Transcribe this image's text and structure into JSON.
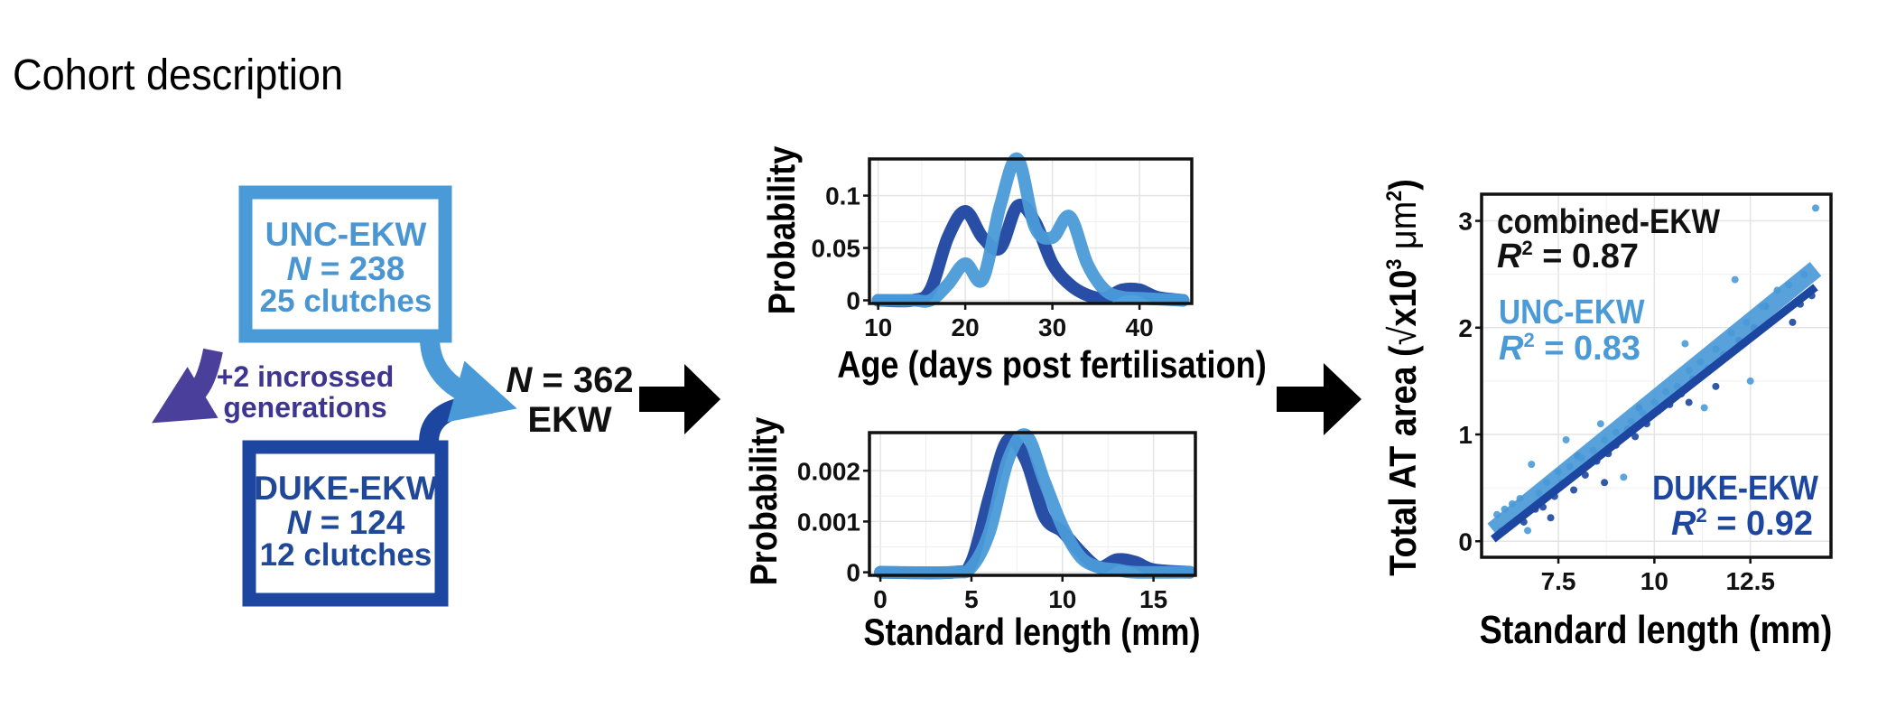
{
  "page_title": "Cohort description",
  "colors": {
    "unc": "#4a9ad8",
    "unc_text": "#4a96d2",
    "duke": "#1c46a0",
    "duke_text": "#1f4898",
    "cross": "#4b3f9c",
    "arrow": "#000000"
  },
  "cohort": {
    "unc": {
      "name": "UNC-EKW",
      "n_label": "N",
      "n_value": "= 238",
      "clutches": "25 clutches"
    },
    "duke": {
      "name": "DUKE-EKW",
      "n_label": "N",
      "n_value": "= 124",
      "clutches": "12 clutches"
    },
    "intercross": {
      "line1": "+2 incrossed",
      "line2": "generations"
    },
    "combined": {
      "n_label": "N",
      "n_value": "= 362",
      "name": "EKW"
    }
  },
  "chart_data": [
    {
      "type": "line",
      "id": "age-density",
      "title": "",
      "xlabel": "Age (days post fertilisation)",
      "ylabel": "Probability",
      "xlim": [
        9,
        46
      ],
      "ylim": [
        -0.003,
        0.135
      ],
      "xticks": [
        "10",
        "20",
        "30",
        "40"
      ],
      "xtick_values": [
        10,
        20,
        30,
        40
      ],
      "yticks": [
        "0",
        "0.05",
        "0.1"
      ],
      "ytick_values": [
        0,
        0.05,
        0.1
      ],
      "series": [
        {
          "name": "DUKE-EKW",
          "x": [
            10,
            14,
            16,
            18,
            20,
            22,
            24,
            26,
            28,
            30,
            32,
            34,
            36,
            38,
            40,
            42,
            45
          ],
          "y": [
            0,
            0,
            0.01,
            0.06,
            0.085,
            0.06,
            0.05,
            0.09,
            0.075,
            0.035,
            0.015,
            0.005,
            0.002,
            0.01,
            0.01,
            0.003,
            0
          ]
        },
        {
          "name": "UNC-EKW",
          "x": [
            10,
            14,
            16,
            18,
            20,
            22,
            24,
            26,
            28,
            30,
            32,
            34,
            36,
            38,
            40,
            45
          ],
          "y": [
            0,
            0,
            0,
            0.015,
            0.035,
            0.02,
            0.09,
            0.135,
            0.07,
            0.06,
            0.08,
            0.035,
            0.01,
            0.003,
            0.002,
            0
          ]
        }
      ]
    },
    {
      "type": "line",
      "id": "length-density",
      "title": "",
      "xlabel": "Standard length (mm)",
      "ylabel": "Probability",
      "xlim": [
        -0.6,
        17.3
      ],
      "ylim": [
        -6e-05,
        0.00275
      ],
      "xticks": [
        "0",
        "5",
        "10",
        "15"
      ],
      "xtick_values": [
        0,
        5,
        10,
        15
      ],
      "yticks": [
        "0",
        "0.001",
        "0.002"
      ],
      "ytick_values": [
        0,
        0.001,
        0.002
      ],
      "series": [
        {
          "name": "DUKE-EKW",
          "x": [
            0,
            4,
            5,
            6,
            7,
            8,
            9,
            10,
            11,
            12,
            13,
            14,
            15,
            17
          ],
          "y": [
            0,
            0,
            0.0002,
            0.0015,
            0.0026,
            0.0022,
            0.0011,
            0.0008,
            0.0004,
            0.0001,
            0.00025,
            0.0002,
            5e-05,
            0
          ]
        },
        {
          "name": "UNC-EKW",
          "x": [
            0,
            4,
            5,
            6,
            7,
            8,
            9,
            10,
            11,
            12,
            13,
            14,
            17
          ],
          "y": [
            0,
            0,
            0.0001,
            0.0008,
            0.0022,
            0.0027,
            0.0018,
            0.0009,
            0.0003,
            0.0001,
            5e-05,
            0,
            0
          ]
        }
      ]
    },
    {
      "type": "scatter",
      "id": "at-area",
      "title": "",
      "xlabel": "Standard length (mm)",
      "ylabel_pre": "Total AT area (",
      "ylabel_radical": "√",
      "ylabel_mid": "x10",
      "ylabel_exp1": "3",
      "ylabel_unit": " μm",
      "ylabel_exp2": "2",
      "ylabel_post": ")",
      "xlim": [
        5.5,
        14.6
      ],
      "ylim": [
        -0.15,
        3.25
      ],
      "xticks": [
        "7.5",
        "10",
        "12.5"
      ],
      "xtick_values": [
        7.5,
        10,
        12.5
      ],
      "yticks": [
        "0",
        "1",
        "2",
        "3"
      ],
      "ytick_values": [
        0,
        1,
        2,
        3
      ],
      "fits": [
        {
          "name": "combined-EKW",
          "r2_label": "R",
          "r2_exp": "2",
          "r2_value": "= 0.87",
          "color": "black"
        },
        {
          "name": "UNC-EKW",
          "r2_label": "R",
          "r2_exp": "2",
          "r2_value": "= 0.83",
          "color": "unc",
          "line": {
            "x": [
              5.8,
              14.2
            ],
            "y": [
              0.1,
              2.55
            ]
          }
        },
        {
          "name": "DUKE-EKW",
          "r2_label": "R",
          "r2_exp": "2",
          "r2_value": "= 0.92",
          "color": "duke",
          "line": {
            "x": [
              5.8,
              14.2
            ],
            "y": [
              0.02,
              2.38
            ]
          }
        }
      ],
      "series": [
        {
          "name": "DUKE-EKW",
          "points": [
            [
              6.0,
              0.1
            ],
            [
              6.2,
              0.15
            ],
            [
              6.4,
              0.2
            ],
            [
              6.6,
              0.18
            ],
            [
              6.9,
              0.3
            ],
            [
              7.1,
              0.32
            ],
            [
              7.4,
              0.42
            ],
            [
              7.6,
              0.55
            ],
            [
              7.9,
              0.48
            ],
            [
              8.2,
              0.62
            ],
            [
              8.5,
              0.75
            ],
            [
              8.8,
              0.82
            ],
            [
              9.0,
              0.9
            ],
            [
              9.3,
              1.05
            ],
            [
              9.5,
              0.98
            ],
            [
              9.8,
              1.1
            ],
            [
              10.1,
              1.22
            ],
            [
              10.4,
              1.28
            ],
            [
              10.7,
              1.38
            ],
            [
              11.0,
              1.52
            ],
            [
              11.4,
              1.62
            ],
            [
              11.8,
              1.75
            ],
            [
              12.2,
              1.88
            ],
            [
              12.6,
              2.0
            ],
            [
              13.0,
              2.05
            ],
            [
              13.4,
              2.15
            ],
            [
              13.8,
              2.22
            ],
            [
              14.1,
              2.3
            ],
            [
              8.7,
              0.55
            ],
            [
              8.0,
              0.8
            ],
            [
              9.6,
              1.25
            ],
            [
              10.9,
              1.3
            ],
            [
              12.9,
              2.2
            ],
            [
              13.6,
              2.05
            ],
            [
              7.3,
              0.22
            ],
            [
              11.6,
              1.45
            ]
          ]
        },
        {
          "name": "UNC-EKW",
          "points": [
            [
              5.9,
              0.25
            ],
            [
              6.1,
              0.3
            ],
            [
              6.3,
              0.35
            ],
            [
              6.5,
              0.4
            ],
            [
              6.8,
              0.72
            ],
            [
              7.0,
              0.45
            ],
            [
              7.2,
              0.55
            ],
            [
              7.5,
              0.65
            ],
            [
              7.8,
              0.7
            ],
            [
              8.1,
              0.78
            ],
            [
              8.4,
              0.85
            ],
            [
              8.7,
              0.95
            ],
            [
              9.0,
              1.02
            ],
            [
              9.4,
              1.12
            ],
            [
              9.7,
              1.2
            ],
            [
              10.0,
              1.3
            ],
            [
              10.3,
              1.4
            ],
            [
              10.6,
              1.45
            ],
            [
              10.9,
              1.6
            ],
            [
              11.2,
              1.68
            ],
            [
              11.6,
              1.8
            ],
            [
              12.0,
              1.95
            ],
            [
              12.4,
              2.05
            ],
            [
              12.8,
              2.2
            ],
            [
              13.2,
              2.35
            ],
            [
              13.5,
              2.4
            ],
            [
              13.9,
              2.5
            ],
            [
              14.2,
              3.12
            ],
            [
              12.5,
              1.5
            ],
            [
              12.1,
              2.45
            ],
            [
              9.2,
              0.6
            ],
            [
              8.6,
              1.1
            ],
            [
              10.8,
              1.85
            ],
            [
              6.7,
              0.1
            ],
            [
              11.3,
              1.25
            ],
            [
              7.7,
              0.95
            ]
          ]
        }
      ]
    }
  ]
}
